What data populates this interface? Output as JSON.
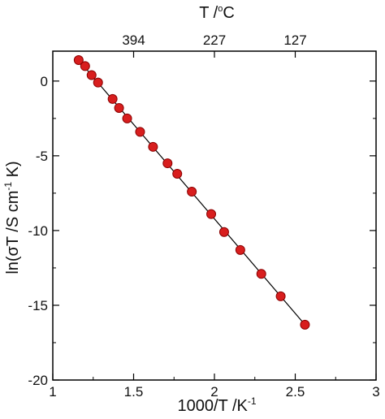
{
  "chart_data": {
    "type": "scatter",
    "xlabel_main": "1000/T /K",
    "xlabel_sup": "-1",
    "ylabel_main": "ln(σT /S cm",
    "ylabel_sup": "-1",
    "ylabel_tail": " K)",
    "top_axis_title": "T /°C",
    "xlim": [
      1,
      3
    ],
    "ylim": [
      -20,
      2
    ],
    "x_ticks": [
      1,
      1.5,
      2,
      2.5,
      3
    ],
    "x_tick_labels": [
      "1",
      "1.5",
      "2",
      "2.5",
      "3"
    ],
    "y_ticks": [
      -20,
      -15,
      -10,
      -5,
      0
    ],
    "y_tick_labels": [
      "-20",
      "-15",
      "-10",
      "-5",
      "0"
    ],
    "top_ticks": [
      {
        "label": "394",
        "x": 1.5
      },
      {
        "label": "227",
        "x": 2.0
      },
      {
        "label": "127",
        "x": 2.5
      }
    ],
    "series": [
      {
        "points": [
          [
            1.16,
            1.4
          ],
          [
            1.2,
            1.0
          ],
          [
            1.24,
            0.4
          ],
          [
            1.28,
            -0.1
          ],
          [
            1.37,
            -1.2
          ],
          [
            1.41,
            -1.8
          ],
          [
            1.46,
            -2.5
          ],
          [
            1.54,
            -3.4
          ],
          [
            1.62,
            -4.4
          ],
          [
            1.71,
            -5.5
          ],
          [
            1.77,
            -6.2
          ],
          [
            1.86,
            -7.4
          ],
          [
            1.98,
            -8.9
          ],
          [
            2.06,
            -10.1
          ],
          [
            2.16,
            -11.3
          ],
          [
            2.29,
            -12.9
          ],
          [
            2.41,
            -14.4
          ],
          [
            2.56,
            -16.3
          ]
        ],
        "marker_color": "#d81e1e",
        "marker_edge": "#8b0000"
      }
    ],
    "fit_line": {
      "x": [
        1.16,
        2.56
      ],
      "y": [
        1.4,
        -16.3
      ],
      "color": "#000000"
    }
  }
}
